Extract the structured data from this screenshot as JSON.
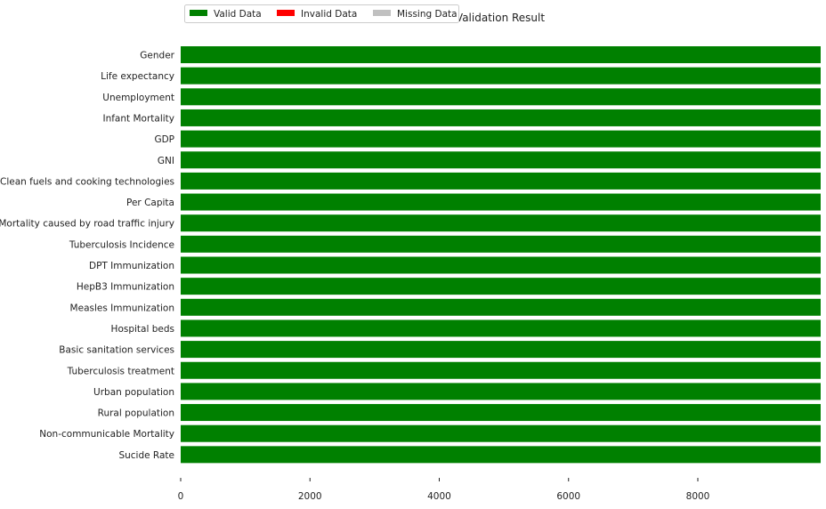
{
  "chart_data": {
    "type": "bar",
    "orientation": "horizontal",
    "stacked": true,
    "title": "Validation Result",
    "xlabel": "",
    "ylabel": "",
    "xlim": [
      0,
      9900
    ],
    "x_ticks": [
      0,
      2000,
      4000,
      6000,
      8000
    ],
    "grid": false,
    "legend_position": "top-left",
    "categories": [
      "Gender",
      "Life expectancy",
      "Unemployment",
      "Infant Mortality",
      "GDP",
      "GNI",
      "Clean fuels and cooking technologies",
      "Per Capita",
      "Mortality caused by road traffic injury",
      "Tuberculosis Incidence",
      "DPT Immunization",
      "HepB3 Immunization",
      "Measles Immunization",
      "Hospital beds",
      "Basic sanitation services",
      "Tuberculosis treatment",
      "Urban population",
      "Rural population",
      "Non-communicable Mortality",
      "Sucide Rate"
    ],
    "series": [
      {
        "name": "Valid Data",
        "color": "#008000",
        "values": [
          9900,
          9900,
          9900,
          9900,
          9900,
          9900,
          9900,
          9900,
          9900,
          9900,
          9900,
          9900,
          9900,
          9900,
          9900,
          9900,
          9900,
          9900,
          9900,
          9900
        ]
      },
      {
        "name": "Invalid Data",
        "color": "#ff0000",
        "values": [
          0,
          0,
          0,
          0,
          0,
          0,
          0,
          0,
          0,
          0,
          0,
          0,
          0,
          0,
          0,
          0,
          0,
          0,
          0,
          0
        ]
      },
      {
        "name": "Missing Data",
        "color": "#c0c0c0",
        "values": [
          0,
          0,
          0,
          0,
          0,
          0,
          0,
          0,
          0,
          0,
          0,
          0,
          0,
          0,
          0,
          0,
          0,
          0,
          0,
          0
        ]
      }
    ]
  }
}
